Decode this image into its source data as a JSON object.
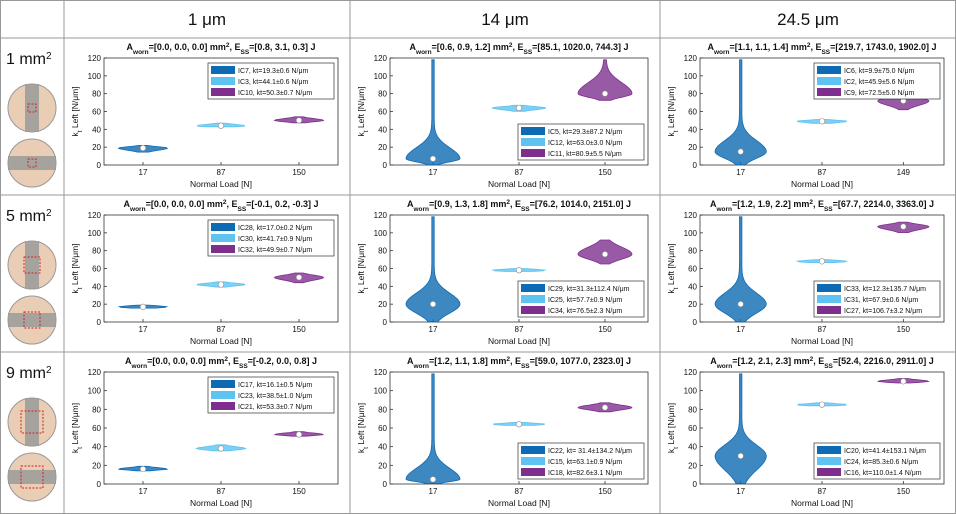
{
  "column_headers": [
    "1 μm",
    "14 μm",
    "24.5 μm"
  ],
  "row_headers": [
    [
      {
        "t": "1 mm"
      },
      {
        "t": "2",
        "pos": "sup"
      }
    ],
    [
      {
        "t": "5 mm"
      },
      {
        "t": "2",
        "pos": "sup"
      }
    ],
    [
      {
        "t": "9 mm"
      },
      {
        "t": "2",
        "pos": "sup"
      }
    ]
  ],
  "chart_data": [
    {
      "type": "violin",
      "title": [
        {
          "t": "A"
        },
        {
          "t": "worn",
          "pos": "sub"
        },
        {
          "t": "=[0.0, 0.0, 0.0] mm"
        },
        {
          "t": "2",
          "pos": "sup"
        },
        {
          "t": ", E"
        },
        {
          "t": "SS",
          "pos": "sub"
        },
        {
          "t": "=[0.8, 3.1, 0.3] J"
        }
      ],
      "xlabel": "Normal Load [N]",
      "ylabel": [
        {
          "t": "k"
        },
        {
          "t": "t",
          "pos": "sub"
        },
        {
          "t": " Left [N/μm]"
        }
      ],
      "categories": [
        "17",
        "87",
        "150"
      ],
      "ylim": [
        0,
        120
      ],
      "yticks": [
        0,
        20,
        40,
        60,
        80,
        100,
        120
      ],
      "legend": "upper right",
      "series": [
        {
          "name": "IC7, kt=19.3±0.6 N/μm",
          "color": "#0e6ab3",
          "values": [
            19,
            null,
            null
          ],
          "lows": [
            14,
            null,
            null
          ],
          "highs": [
            22,
            null,
            null
          ]
        },
        {
          "name": "IC3, kt=44.1±0.6 N/μm",
          "color": "#5ec3f0",
          "values": [
            null,
            44,
            null
          ],
          "lows": [
            null,
            42,
            null
          ],
          "highs": [
            null,
            47,
            null
          ]
        },
        {
          "name": "IC10, kt=50.3±0.7 N/μm",
          "color": "#7e2f8e",
          "values": [
            null,
            null,
            50
          ],
          "lows": [
            null,
            null,
            47
          ],
          "highs": [
            null,
            null,
            54
          ]
        }
      ]
    },
    {
      "type": "violin",
      "title": [
        {
          "t": "A"
        },
        {
          "t": "worn",
          "pos": "sub"
        },
        {
          "t": "=[0.6, 0.9, 1.2] mm"
        },
        {
          "t": "2",
          "pos": "sup"
        },
        {
          "t": ", E"
        },
        {
          "t": "SS",
          "pos": "sub"
        },
        {
          "t": "=[85.1, 1020.0, 744.3] J"
        }
      ],
      "xlabel": "Normal Load [N]",
      "ylabel": [
        {
          "t": "k"
        },
        {
          "t": "t",
          "pos": "sub"
        },
        {
          "t": " Left [N/μm]"
        }
      ],
      "categories": [
        "17",
        "87",
        "150"
      ],
      "ylim": [
        0,
        120
      ],
      "yticks": [
        0,
        20,
        40,
        60,
        80,
        100,
        120
      ],
      "legend": "lower right",
      "series": [
        {
          "name": "IC5, kt=29.3±87.2 N/μm",
          "color": "#0e6ab3",
          "values": [
            7,
            null,
            null
          ],
          "lows": [
            0,
            null,
            null
          ],
          "highs": [
            118,
            null,
            null
          ]
        },
        {
          "name": "IC12, kt=63.0±3.0 N/μm",
          "color": "#5ec3f0",
          "values": [
            null,
            64,
            null
          ],
          "lows": [
            null,
            60,
            null
          ],
          "highs": [
            null,
            67,
            null
          ]
        },
        {
          "name": "IC11, kt=80.9±5.5 N/μm",
          "color": "#7e2f8e",
          "values": [
            null,
            null,
            80
          ],
          "lows": [
            null,
            null,
            72
          ],
          "highs": [
            null,
            null,
            118
          ]
        }
      ]
    },
    {
      "type": "violin",
      "title": [
        {
          "t": "A"
        },
        {
          "t": "worn",
          "pos": "sub"
        },
        {
          "t": "=[1.1, 1.1, 1.4] mm"
        },
        {
          "t": "2",
          "pos": "sup"
        },
        {
          "t": ", E"
        },
        {
          "t": "SS",
          "pos": "sub"
        },
        {
          "t": "=[219.7, 1743.0, 1902.0] J"
        }
      ],
      "xlabel": "Normal Load [N]",
      "ylabel": [
        {
          "t": "k"
        },
        {
          "t": "t",
          "pos": "sub"
        },
        {
          "t": " Left [N/μm]"
        }
      ],
      "categories": [
        "17",
        "87",
        "149"
      ],
      "ylim": [
        0,
        120
      ],
      "yticks": [
        0,
        20,
        40,
        60,
        80,
        100,
        120
      ],
      "legend": "upper right",
      "series": [
        {
          "name": "IC6, kt=9.9±75.0 N/μm",
          "color": "#0e6ab3",
          "values": [
            15,
            null,
            null
          ],
          "lows": [
            0,
            null,
            null
          ],
          "highs": [
            118,
            null,
            null
          ]
        },
        {
          "name": "IC2, kt=45.9±5.6 N/μm",
          "color": "#5ec3f0",
          "values": [
            null,
            49,
            null
          ],
          "lows": [
            null,
            46,
            null
          ],
          "highs": [
            null,
            51,
            null
          ]
        },
        {
          "name": "IC9, kt=72.5±5.0 N/μm",
          "color": "#7e2f8e",
          "values": [
            null,
            null,
            72
          ],
          "lows": [
            null,
            null,
            62
          ],
          "highs": [
            null,
            null,
            78
          ]
        }
      ]
    },
    {
      "type": "violin",
      "title": [
        {
          "t": "A"
        },
        {
          "t": "worn",
          "pos": "sub"
        },
        {
          "t": "=[0.0, 0.0, 0.0] mm"
        },
        {
          "t": "2",
          "pos": "sup"
        },
        {
          "t": ", E"
        },
        {
          "t": "SS",
          "pos": "sub"
        },
        {
          "t": "=[-0.1, 0.2, -0.3] J"
        }
      ],
      "xlabel": "Normal Load [N]",
      "ylabel": [
        {
          "t": "k"
        },
        {
          "t": "t",
          "pos": "sub"
        },
        {
          "t": " Left [N/μm]"
        }
      ],
      "categories": [
        "17",
        "87",
        "150"
      ],
      "ylim": [
        0,
        120
      ],
      "yticks": [
        0,
        20,
        40,
        60,
        80,
        100,
        120
      ],
      "legend": "upper right",
      "series": [
        {
          "name": "IC28, kt=17.0±0.2 N/μm",
          "color": "#0e6ab3",
          "values": [
            17,
            null,
            null
          ],
          "lows": [
            15,
            null,
            null
          ],
          "highs": [
            19,
            null,
            null
          ]
        },
        {
          "name": "IC30, kt=41.7±0.9 N/μm",
          "color": "#5ec3f0",
          "values": [
            null,
            42,
            null
          ],
          "lows": [
            null,
            39,
            null
          ],
          "highs": [
            null,
            45,
            null
          ]
        },
        {
          "name": "IC32, kt=49.9±0.7 N/μm",
          "color": "#7e2f8e",
          "values": [
            null,
            null,
            50
          ],
          "lows": [
            null,
            null,
            44
          ],
          "highs": [
            null,
            null,
            55
          ]
        }
      ]
    },
    {
      "type": "violin",
      "title": [
        {
          "t": "A"
        },
        {
          "t": "worn",
          "pos": "sub"
        },
        {
          "t": "=[0.9, 1.3, 1.8] mm"
        },
        {
          "t": "2",
          "pos": "sup"
        },
        {
          "t": ", E"
        },
        {
          "t": "SS",
          "pos": "sub"
        },
        {
          "t": "=[76.2, 1014.0, 2151.0] J"
        }
      ],
      "xlabel": "Normal Load [N]",
      "ylabel": [
        {
          "t": "k"
        },
        {
          "t": "t",
          "pos": "sub"
        },
        {
          "t": " Left [N/μm]"
        }
      ],
      "categories": [
        "17",
        "87",
        "150"
      ],
      "ylim": [
        0,
        120
      ],
      "yticks": [
        0,
        20,
        40,
        60,
        80,
        100,
        120
      ],
      "legend": "lower right",
      "series": [
        {
          "name": "IC29, kt=31.3±112.4 N/μm",
          "color": "#0e6ab3",
          "values": [
            20,
            null,
            null
          ],
          "lows": [
            0,
            null,
            null
          ],
          "highs": [
            118,
            null,
            null
          ]
        },
        {
          "name": "IC25, kt=57.7±0.9 N/μm",
          "color": "#5ec3f0",
          "values": [
            null,
            58,
            null
          ],
          "lows": [
            null,
            56,
            null
          ],
          "highs": [
            null,
            60,
            null
          ]
        },
        {
          "name": "IC34, kt=76.5±2.3 N/μm",
          "color": "#7e2f8e",
          "values": [
            null,
            null,
            76
          ],
          "lows": [
            null,
            null,
            65
          ],
          "highs": [
            null,
            null,
            92
          ]
        }
      ]
    },
    {
      "type": "violin",
      "title": [
        {
          "t": "A"
        },
        {
          "t": "worn",
          "pos": "sub"
        },
        {
          "t": "=[1.2, 1.9, 2.2] mm"
        },
        {
          "t": "2",
          "pos": "sup"
        },
        {
          "t": ", E"
        },
        {
          "t": "SS",
          "pos": "sub"
        },
        {
          "t": "=[67.7, 2214.0, 3363.0] J"
        }
      ],
      "xlabel": "Normal Load [N]",
      "ylabel": [
        {
          "t": "k"
        },
        {
          "t": "t",
          "pos": "sub"
        },
        {
          "t": " Left [N/μm]"
        }
      ],
      "categories": [
        "17",
        "87",
        "150"
      ],
      "ylim": [
        0,
        120
      ],
      "yticks": [
        0,
        20,
        40,
        60,
        80,
        100,
        120
      ],
      "legend": "lower right",
      "series": [
        {
          "name": "IC33, kt=12.3±135.7 N/μm",
          "color": "#0e6ab3",
          "values": [
            20,
            null,
            null
          ],
          "lows": [
            0,
            null,
            null
          ],
          "highs": [
            118,
            null,
            null
          ]
        },
        {
          "name": "IC31, kt=67.9±0.6 N/μm",
          "color": "#5ec3f0",
          "values": [
            null,
            68,
            null
          ],
          "lows": [
            null,
            66,
            null
          ],
          "highs": [
            null,
            70,
            null
          ]
        },
        {
          "name": "IC27, kt=106.7±3.2 N/μm",
          "color": "#7e2f8e",
          "values": [
            null,
            null,
            107
          ],
          "lows": [
            null,
            null,
            100
          ],
          "highs": [
            null,
            null,
            112
          ]
        }
      ]
    },
    {
      "type": "violin",
      "title": [
        {
          "t": "A"
        },
        {
          "t": "worn",
          "pos": "sub"
        },
        {
          "t": "=[0.0, 0.0, 0.0] mm"
        },
        {
          "t": "2",
          "pos": "sup"
        },
        {
          "t": ", E"
        },
        {
          "t": "SS",
          "pos": "sub"
        },
        {
          "t": "=[-0.2, 0.0, 0.8] J"
        }
      ],
      "xlabel": "Normal Load [N]",
      "ylabel": [
        {
          "t": "k"
        },
        {
          "t": "t",
          "pos": "sub"
        },
        {
          "t": " Left [N/μm]"
        }
      ],
      "categories": [
        "17",
        "87",
        "150"
      ],
      "ylim": [
        0,
        120
      ],
      "yticks": [
        0,
        20,
        40,
        60,
        80,
        100,
        120
      ],
      "legend": "upper right",
      "series": [
        {
          "name": "IC17, kt=16.1±0.5 N/μm",
          "color": "#0e6ab3",
          "values": [
            16,
            null,
            null
          ],
          "lows": [
            14,
            null,
            null
          ],
          "highs": [
            19,
            null,
            null
          ]
        },
        {
          "name": "IC23, kt=38.5±1.0 N/μm",
          "color": "#5ec3f0",
          "values": [
            null,
            38,
            null
          ],
          "lows": [
            null,
            35,
            null
          ],
          "highs": [
            null,
            42,
            null
          ]
        },
        {
          "name": "IC21, kt=53.3±0.7 N/μm",
          "color": "#7e2f8e",
          "values": [
            null,
            null,
            53
          ],
          "lows": [
            null,
            null,
            51
          ],
          "highs": [
            null,
            null,
            56
          ]
        }
      ]
    },
    {
      "type": "violin",
      "title": [
        {
          "t": "A"
        },
        {
          "t": "worn",
          "pos": "sub"
        },
        {
          "t": "=[1.2, 1.1, 1.8] mm"
        },
        {
          "t": "2",
          "pos": "sup"
        },
        {
          "t": ", E"
        },
        {
          "t": "SS",
          "pos": "sub"
        },
        {
          "t": "=[59.0, 1077.0, 2323.0] J"
        }
      ],
      "xlabel": "Normal Load [N]",
      "ylabel": [
        {
          "t": "k"
        },
        {
          "t": "t",
          "pos": "sub"
        },
        {
          "t": " Left [N/μm]"
        }
      ],
      "categories": [
        "17",
        "87",
        "150"
      ],
      "ylim": [
        0,
        120
      ],
      "yticks": [
        0,
        20,
        40,
        60,
        80,
        100,
        120
      ],
      "legend": "lower right",
      "series": [
        {
          "name": "IC22, kt= 31.4±134.2 N/μm",
          "color": "#0e6ab3",
          "values": [
            5,
            null,
            null
          ],
          "lows": [
            0,
            null,
            null
          ],
          "highs": [
            118,
            null,
            null
          ]
        },
        {
          "name": "IC15, kt=63.1±0.9 N/μm",
          "color": "#5ec3f0",
          "values": [
            null,
            64,
            null
          ],
          "lows": [
            null,
            62,
            null
          ],
          "highs": [
            null,
            66,
            null
          ]
        },
        {
          "name": "IC18, kt=82.6±3.1 N/μm",
          "color": "#7e2f8e",
          "values": [
            null,
            null,
            82
          ],
          "lows": [
            null,
            null,
            77
          ],
          "highs": [
            null,
            null,
            87
          ]
        }
      ]
    },
    {
      "type": "violin",
      "title": [
        {
          "t": "A"
        },
        {
          "t": "worn",
          "pos": "sub"
        },
        {
          "t": "=[1.2, 2.1, 2.3] mm"
        },
        {
          "t": "2",
          "pos": "sup"
        },
        {
          "t": ", E"
        },
        {
          "t": "SS",
          "pos": "sub"
        },
        {
          "t": "=[52.4, 2216.0, 2911.0] J"
        }
      ],
      "xlabel": "Normal Load [N]",
      "ylabel": [
        {
          "t": "k"
        },
        {
          "t": "t",
          "pos": "sub"
        },
        {
          "t": " Left [N/μm]"
        }
      ],
      "categories": [
        "17",
        "87",
        "150"
      ],
      "ylim": [
        0,
        120
      ],
      "yticks": [
        0,
        20,
        40,
        60,
        80,
        100,
        120
      ],
      "legend": "lower right",
      "series": [
        {
          "name": "IC20, kt=41.4±153.1 N/μm",
          "color": "#0e6ab3",
          "values": [
            30,
            null,
            null
          ],
          "lows": [
            0,
            null,
            null
          ],
          "highs": [
            118,
            null,
            null
          ]
        },
        {
          "name": "IC24, kt=85.3±0.6 N/μm",
          "color": "#5ec3f0",
          "values": [
            null,
            85,
            null
          ],
          "lows": [
            null,
            83,
            null
          ],
          "highs": [
            null,
            87,
            null
          ]
        },
        {
          "name": "IC16, kt=110.0±1.4 N/μm",
          "color": "#7e2f8e",
          "values": [
            null,
            null,
            110
          ],
          "lows": [
            null,
            null,
            108
          ],
          "highs": [
            null,
            null,
            113
          ]
        }
      ]
    }
  ]
}
